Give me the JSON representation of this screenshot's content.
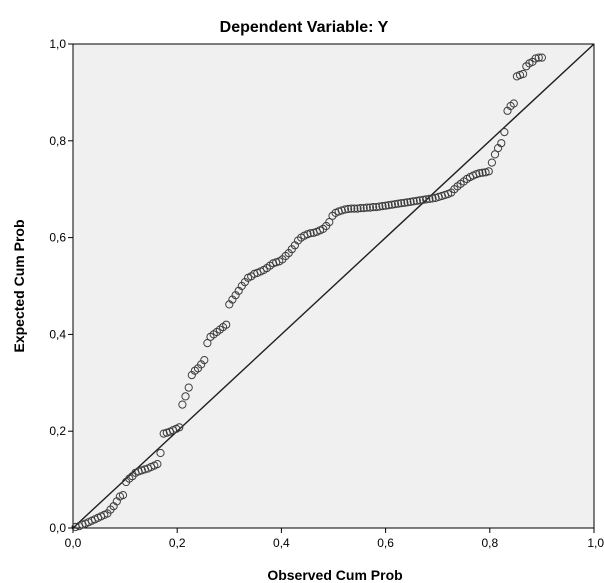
{
  "chart_data": {
    "type": "scatter",
    "title": "Dependent Variable: Y",
    "xlabel": "Observed Cum Prob",
    "ylabel": "Expected Cum Prob",
    "xlim": [
      0,
      1
    ],
    "ylim": [
      0,
      1
    ],
    "xticks": [
      "0,0",
      "0,2",
      "0,4",
      "0,6",
      "0,8",
      "1,0"
    ],
    "yticks": [
      "0,0",
      "0,2",
      "0,4",
      "0,6",
      "0,8",
      "1,0"
    ],
    "grid": false,
    "reference_line": {
      "from": [
        0,
        0
      ],
      "to": [
        1,
        1
      ]
    },
    "colors": {
      "plot_background": "#f0f0f0",
      "marker_stroke": "#3c3c3c",
      "line": "#1e1e1e"
    },
    "points": [
      [
        0.005,
        0.002
      ],
      [
        0.012,
        0.004
      ],
      [
        0.018,
        0.007
      ],
      [
        0.024,
        0.009
      ],
      [
        0.03,
        0.012
      ],
      [
        0.036,
        0.015
      ],
      [
        0.042,
        0.018
      ],
      [
        0.048,
        0.021
      ],
      [
        0.054,
        0.024
      ],
      [
        0.06,
        0.027
      ],
      [
        0.066,
        0.03
      ],
      [
        0.072,
        0.038
      ],
      [
        0.078,
        0.045
      ],
      [
        0.084,
        0.055
      ],
      [
        0.09,
        0.065
      ],
      [
        0.096,
        0.068
      ],
      [
        0.102,
        0.095
      ],
      [
        0.108,
        0.102
      ],
      [
        0.114,
        0.107
      ],
      [
        0.12,
        0.114
      ],
      [
        0.126,
        0.117
      ],
      [
        0.132,
        0.119
      ],
      [
        0.138,
        0.121
      ],
      [
        0.144,
        0.123
      ],
      [
        0.15,
        0.126
      ],
      [
        0.156,
        0.129
      ],
      [
        0.162,
        0.132
      ],
      [
        0.168,
        0.155
      ],
      [
        0.174,
        0.195
      ],
      [
        0.18,
        0.197
      ],
      [
        0.186,
        0.199
      ],
      [
        0.192,
        0.202
      ],
      [
        0.198,
        0.205
      ],
      [
        0.204,
        0.208
      ],
      [
        0.21,
        0.255
      ],
      [
        0.216,
        0.272
      ],
      [
        0.222,
        0.29
      ],
      [
        0.228,
        0.316
      ],
      [
        0.234,
        0.325
      ],
      [
        0.24,
        0.33
      ],
      [
        0.246,
        0.338
      ],
      [
        0.252,
        0.347
      ],
      [
        0.258,
        0.382
      ],
      [
        0.264,
        0.395
      ],
      [
        0.27,
        0.4
      ],
      [
        0.276,
        0.405
      ],
      [
        0.282,
        0.41
      ],
      [
        0.288,
        0.415
      ],
      [
        0.294,
        0.42
      ],
      [
        0.3,
        0.462
      ],
      [
        0.306,
        0.472
      ],
      [
        0.312,
        0.481
      ],
      [
        0.318,
        0.49
      ],
      [
        0.324,
        0.5
      ],
      [
        0.33,
        0.508
      ],
      [
        0.336,
        0.517
      ],
      [
        0.342,
        0.52
      ],
      [
        0.348,
        0.525
      ],
      [
        0.354,
        0.527
      ],
      [
        0.36,
        0.53
      ],
      [
        0.366,
        0.533
      ],
      [
        0.372,
        0.537
      ],
      [
        0.378,
        0.542
      ],
      [
        0.384,
        0.547
      ],
      [
        0.39,
        0.549
      ],
      [
        0.396,
        0.551
      ],
      [
        0.402,
        0.555
      ],
      [
        0.408,
        0.562
      ],
      [
        0.414,
        0.568
      ],
      [
        0.42,
        0.576
      ],
      [
        0.426,
        0.584
      ],
      [
        0.432,
        0.594
      ],
      [
        0.438,
        0.6
      ],
      [
        0.444,
        0.604
      ],
      [
        0.45,
        0.607
      ],
      [
        0.456,
        0.609
      ],
      [
        0.462,
        0.61
      ],
      [
        0.468,
        0.612
      ],
      [
        0.474,
        0.615
      ],
      [
        0.48,
        0.618
      ],
      [
        0.486,
        0.624
      ],
      [
        0.492,
        0.632
      ],
      [
        0.498,
        0.645
      ],
      [
        0.504,
        0.651
      ],
      [
        0.51,
        0.654
      ],
      [
        0.516,
        0.656
      ],
      [
        0.522,
        0.658
      ],
      [
        0.528,
        0.659
      ],
      [
        0.534,
        0.66
      ],
      [
        0.54,
        0.66
      ],
      [
        0.546,
        0.66
      ],
      [
        0.552,
        0.661
      ],
      [
        0.558,
        0.661
      ],
      [
        0.564,
        0.662
      ],
      [
        0.57,
        0.662
      ],
      [
        0.576,
        0.663
      ],
      [
        0.582,
        0.663
      ],
      [
        0.588,
        0.664
      ],
      [
        0.594,
        0.665
      ],
      [
        0.6,
        0.666
      ],
      [
        0.606,
        0.667
      ],
      [
        0.612,
        0.668
      ],
      [
        0.618,
        0.669
      ],
      [
        0.624,
        0.67
      ],
      [
        0.63,
        0.671
      ],
      [
        0.636,
        0.672
      ],
      [
        0.642,
        0.673
      ],
      [
        0.648,
        0.674
      ],
      [
        0.654,
        0.675
      ],
      [
        0.66,
        0.676
      ],
      [
        0.666,
        0.677
      ],
      [
        0.672,
        0.678
      ],
      [
        0.678,
        0.679
      ],
      [
        0.684,
        0.68
      ],
      [
        0.69,
        0.681
      ],
      [
        0.696,
        0.682
      ],
      [
        0.702,
        0.684
      ],
      [
        0.708,
        0.686
      ],
      [
        0.714,
        0.688
      ],
      [
        0.72,
        0.69
      ],
      [
        0.726,
        0.693
      ],
      [
        0.732,
        0.7
      ],
      [
        0.738,
        0.706
      ],
      [
        0.744,
        0.711
      ],
      [
        0.75,
        0.716
      ],
      [
        0.756,
        0.721
      ],
      [
        0.762,
        0.725
      ],
      [
        0.768,
        0.728
      ],
      [
        0.774,
        0.731
      ],
      [
        0.78,
        0.733
      ],
      [
        0.786,
        0.734
      ],
      [
        0.792,
        0.735
      ],
      [
        0.798,
        0.737
      ],
      [
        0.804,
        0.755
      ],
      [
        0.81,
        0.772
      ],
      [
        0.816,
        0.785
      ],
      [
        0.822,
        0.795
      ],
      [
        0.828,
        0.818
      ],
      [
        0.834,
        0.862
      ],
      [
        0.84,
        0.872
      ],
      [
        0.846,
        0.877
      ],
      [
        0.852,
        0.933
      ],
      [
        0.858,
        0.936
      ],
      [
        0.864,
        0.938
      ],
      [
        0.87,
        0.954
      ],
      [
        0.876,
        0.96
      ],
      [
        0.882,
        0.963
      ],
      [
        0.888,
        0.97
      ],
      [
        0.894,
        0.972
      ],
      [
        0.9,
        0.972
      ]
    ]
  }
}
